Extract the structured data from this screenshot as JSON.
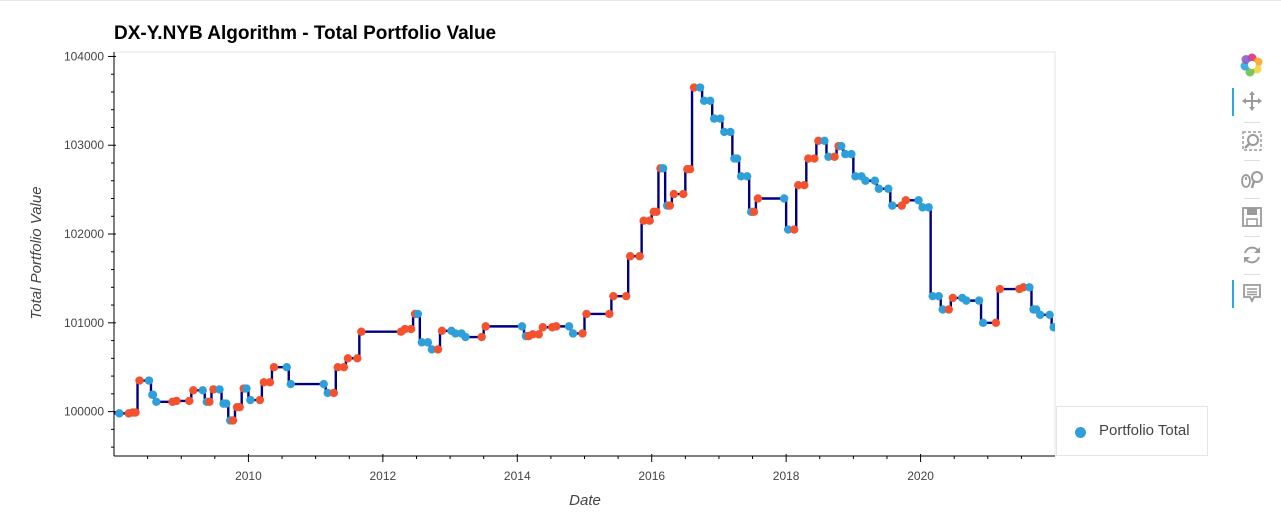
{
  "title": "DX-Y.NYB Algorithm - Total Portfolio Value",
  "legend": {
    "label": "Portfolio Total",
    "color": "#2e9fd9"
  },
  "toolbar": {
    "tools": [
      {
        "name": "bokeh-logo-icon",
        "interactable": false,
        "active": false
      },
      {
        "name": "pan-tool-icon",
        "interactable": true,
        "active": true
      },
      {
        "name": "box-zoom-tool-icon",
        "interactable": true,
        "active": false
      },
      {
        "name": "wheel-zoom-tool-icon",
        "interactable": true,
        "active": false
      },
      {
        "name": "save-tool-icon",
        "interactable": true,
        "active": false
      },
      {
        "name": "reset-tool-icon",
        "interactable": true,
        "active": false
      },
      {
        "name": "hover-tool-icon",
        "interactable": true,
        "active": true
      }
    ]
  },
  "chart_data": {
    "type": "line",
    "title": "DX-Y.NYB Algorithm - Total Portfolio Value",
    "xlabel": "Date",
    "ylabel": "Total Portfolio Value",
    "xlim": [
      2008.0,
      2022.0
    ],
    "ylim": [
      99500,
      104050
    ],
    "x_ticks": [
      2010,
      2012,
      2014,
      2016,
      2018,
      2020
    ],
    "y_ticks": [
      100000,
      101000,
      102000,
      103000,
      104000
    ],
    "line_color": "#00007f",
    "marker_colors": {
      "up": "#f4522e",
      "down": "#2e9fd9"
    },
    "grid": false,
    "legend_position": "bottom-right",
    "series": [
      {
        "name": "Portfolio Total",
        "x": [
          2008.05,
          2008.25,
          2008.35,
          2008.55,
          2008.6,
          2008.9,
          2009.15,
          2009.35,
          2009.45,
          2009.6,
          2009.7,
          2009.8,
          2009.9,
          2010.0,
          2010.2,
          2010.35,
          2010.6,
          2011.15,
          2011.3,
          2011.45,
          2011.65,
          2012.3,
          2012.45,
          2012.55,
          2012.7,
          2012.85,
          2013.05,
          2013.2,
          2013.5,
          2014.1,
          2014.2,
          2014.35,
          2014.55,
          2014.8,
          2015.0,
          2015.4,
          2015.65,
          2015.85,
          2016.0,
          2016.1,
          2016.2,
          2016.3,
          2016.5,
          2016.6,
          2016.75,
          2016.9,
          2017.05,
          2017.2,
          2017.3,
          2017.45,
          2017.55,
          2018.0,
          2018.15,
          2018.3,
          2018.45,
          2018.6,
          2018.75,
          2018.85,
          2019.0,
          2019.15,
          2019.35,
          2019.55,
          2019.75,
          2020.0,
          2020.15,
          2020.3,
          2020.45,
          2020.65,
          2020.9,
          2021.15,
          2021.5,
          2021.65,
          2021.75,
          2021.95
        ],
        "values": [
          99980,
          99990,
          100350,
          100190,
          100110,
          100120,
          100240,
          100110,
          100250,
          100090,
          99900,
          100050,
          100260,
          100130,
          100330,
          100500,
          100310,
          100210,
          100500,
          100600,
          100900,
          100930,
          101100,
          100780,
          100700,
          100910,
          100880,
          100840,
          100960,
          100850,
          100870,
          100950,
          100960,
          100880,
          101100,
          101300,
          101750,
          102150,
          102250,
          102740,
          102320,
          102450,
          102730,
          103650,
          103500,
          103300,
          103150,
          102850,
          102650,
          102250,
          102400,
          102050,
          102550,
          102850,
          103050,
          102870,
          102990,
          102900,
          102650,
          102600,
          102510,
          102320,
          102380,
          102300,
          101300,
          101150,
          101280,
          101250,
          101000,
          101380,
          101400,
          101150,
          101090,
          100950
        ]
      }
    ]
  }
}
